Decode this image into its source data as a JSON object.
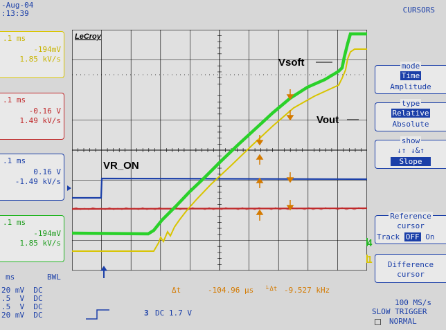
{
  "header": {
    "date": "-Aug-04",
    "time": ":13:39",
    "menu_title": "CURSORS"
  },
  "channels": [
    {
      "color": "#d8c400",
      "timebase": ".1 ms",
      "v": "-194mV",
      "slope": "1.85 kV/s"
    },
    {
      "color": "#c0282a",
      "timebase": ".1 ms",
      "v": "-0.16 V",
      "slope": "1.49 kV/s"
    },
    {
      "color": "#1b3fa8",
      "timebase": ".1 ms",
      "v": "0.16 V",
      "slope": "-1.49 kV/s"
    },
    {
      "color": "#22b522",
      "timebase": ".1 ms",
      "v": "-194mV",
      "slope": "1.85 kV/s"
    }
  ],
  "scope": {
    "brand": "LeCroy",
    "labels": {
      "vsoft": "Vsoft",
      "vout": "Vout",
      "vr_on": "VR_ON"
    },
    "markers": {
      "ch3": "3",
      "ch2": "2",
      "ch4": "4",
      "ch1": "1"
    },
    "delta_t_label": "Δt",
    "delta_t_value": "-104.96 μs",
    "freq_value": "-9.527 kHz"
  },
  "menu": {
    "mode": {
      "caption": "mode",
      "selected": "Time",
      "other": "Amplitude"
    },
    "type": {
      "caption": "type",
      "selected": "Relative",
      "other": "Absolute"
    },
    "show": {
      "caption": "show",
      "icons": "↓↑  ↓&↑",
      "selected": "Slope"
    },
    "reference": {
      "caption": "Reference",
      "line1": "cursor",
      "track": "Track",
      "off": "OFF",
      "on": "On"
    },
    "difference": {
      "line1": "Difference",
      "line2": "cursor"
    }
  },
  "bottom": {
    "hdr_ms": "ms",
    "hdr_bwl": "BWL",
    "rows": [
      "20 mV  DC",
      ".5  V  DC",
      ".5  V  DC",
      "20 mV  DC"
    ],
    "trig_ch": "3",
    "trig_text": "DC 1.7 V",
    "rate": "100 MS/s",
    "trigger": "SLOW TRIGGER",
    "mode": "NORMAL"
  }
}
